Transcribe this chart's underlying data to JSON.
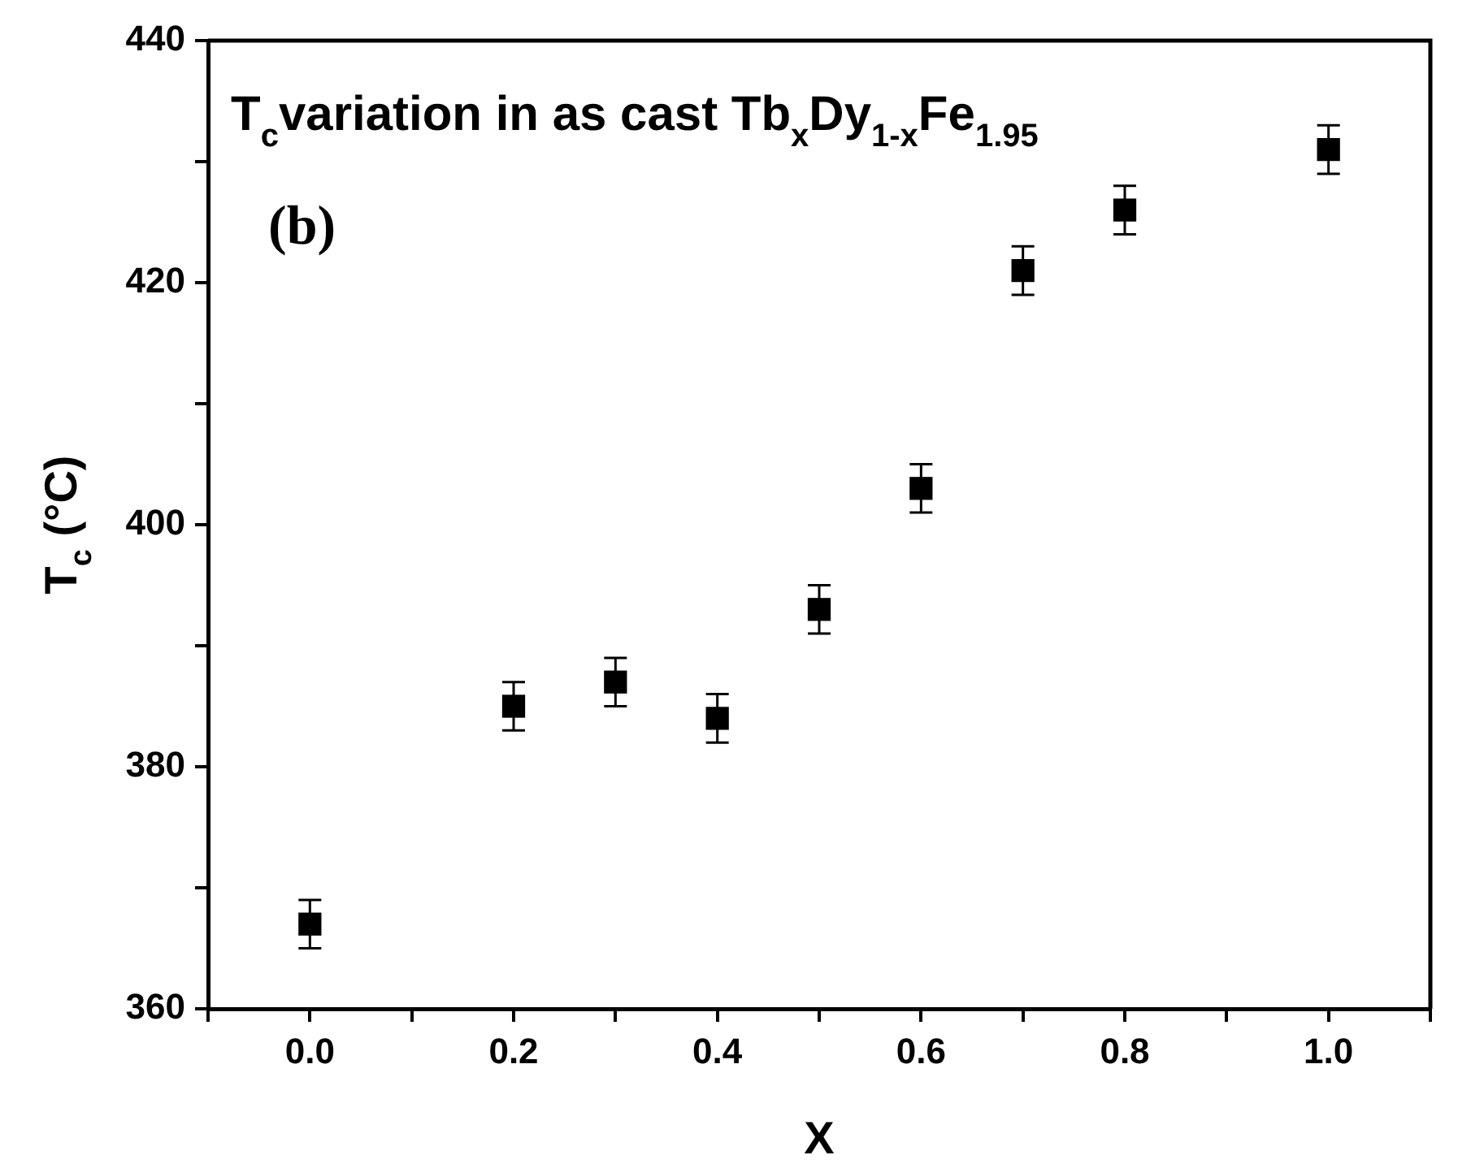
{
  "chart_data": {
    "type": "scatter",
    "title": "T$_{c}$variation in as cast Tb$_{x}$Dy$_{1-x}$Fe$_{1.95}$",
    "xlabel": "X",
    "ylabel": "T$_{c}$ (°C)",
    "annotations": [
      "(b)"
    ],
    "x": [
      0.0,
      0.2,
      0.3,
      0.4,
      0.5,
      0.6,
      0.7,
      0.8,
      1.0
    ],
    "series": [
      {
        "color": "#000000",
        "values": [
          367,
          385,
          387,
          384,
          393,
          403,
          421,
          426,
          431
        ],
        "errors": [
          2,
          2,
          2,
          2,
          2,
          2,
          2,
          2,
          2
        ]
      }
    ],
    "marker": "square",
    "grid": false,
    "legend": false,
    "xlim": [
      -0.1,
      1.1
    ],
    "xticks": [
      {
        "value": -0.1,
        "label": null
      },
      {
        "value": 0,
        "label": "0.0"
      },
      {
        "value": 0.1,
        "label": null
      },
      0.2,
      {
        "value": 0.3,
        "label": null
      },
      0.4,
      {
        "value": 0.5,
        "label": null
      },
      0.6,
      {
        "value": 0.7,
        "label": null
      },
      0.8,
      {
        "value": 0.9,
        "label": null
      },
      {
        "value": 1,
        "label": "1.0"
      },
      {
        "value": 1.1,
        "label": null
      }
    ],
    "ylim": [
      360,
      440
    ],
    "yticks": [
      360,
      {
        "value": 370,
        "label": null
      },
      380,
      {
        "value": 390,
        "label": null
      },
      400,
      {
        "value": 410,
        "label": null
      },
      420,
      {
        "value": 430,
        "label": null
      },
      440
    ]
  }
}
